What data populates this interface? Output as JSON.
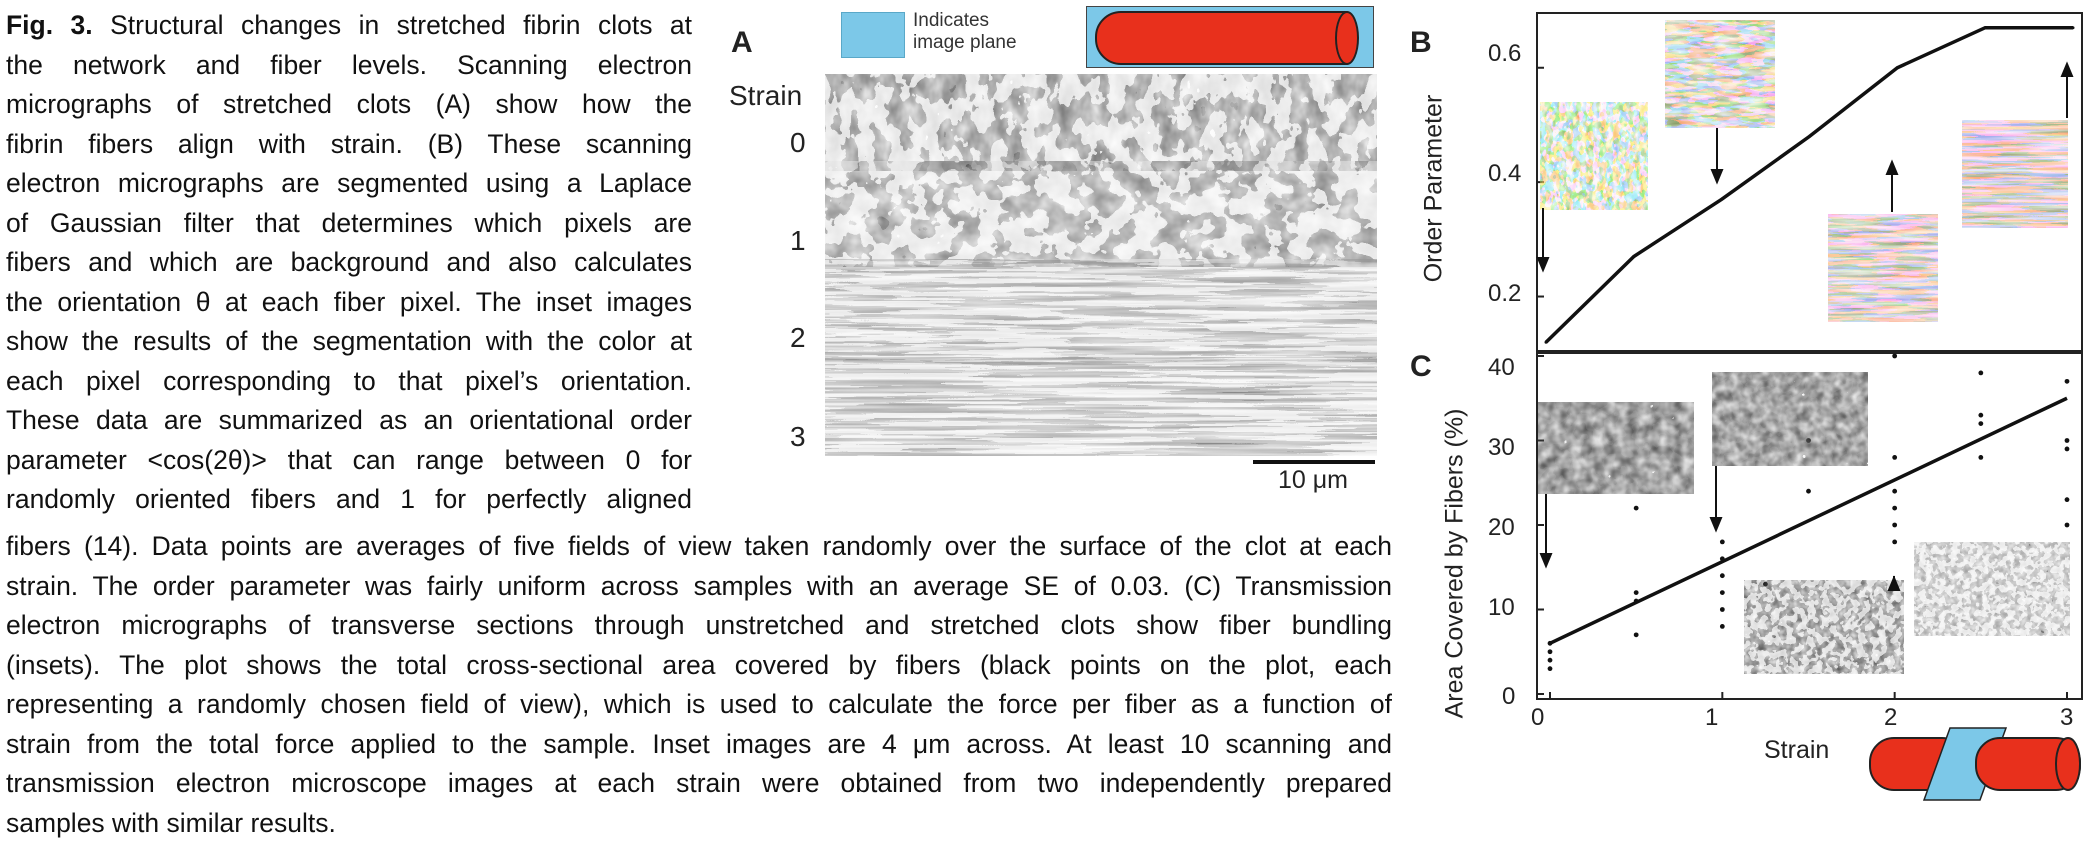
{
  "caption": {
    "fig_label": "Fig. 3.",
    "top_lines": [
      " Structural changes in stretched fibrin clots at",
      "the network and fiber levels. Scanning electron",
      "micrographs of stretched clots (A) show how the",
      "fibrin fibers align with strain. (B) These scanning",
      "electron micrographs are segmented using a Laplace",
      "of Gaussian filter that determines which pixels are",
      "fibers and which are background and also calculates",
      "the orientation θ at each fiber pixel. The inset images",
      "show the results of the segmentation with the color at",
      "each pixel corresponding to that pixel’s orientation.",
      "These data are summarized as an orientational order",
      "parameter <cos(2θ)> that can range between 0 for",
      "randomly oriented fibers and 1 for perfectly aligned"
    ],
    "bottom_lines": [
      "fibers (14). Data points are averages of five fields of view taken randomly over the surface of the clot at each",
      "strain. The order parameter was fairly uniform across samples with an average SE of 0.03. (C) Transmission",
      "electron micrographs of transverse sections through unstretched and stretched clots show fiber bundling",
      "(insets). The plot shows the total cross-sectional area covered by fibers (black points on the plot, each",
      "representing a randomly chosen field of view), which is used to calculate the force per fiber as a function of",
      "strain from the total force applied to the sample. Inset images are 4 μm across. At least 10 scanning and",
      "transmission electron microscope images at each strain were obtained from two independently prepared",
      "samples with similar results."
    ]
  },
  "panel_a": {
    "letter": "A",
    "legend_text_1": "Indicates",
    "legend_text_2": "image plane",
    "strain_title": "Strain",
    "strains": [
      "0",
      "1",
      "2",
      "3"
    ],
    "scale_bar_label": "10 μm",
    "legend_color": "#7cc8e8",
    "cylinder_color": "#e8301c"
  },
  "panel_b": {
    "letter": "B",
    "ylabel": "Order Parameter",
    "yticks": [
      "0.2",
      "0.4",
      "0.6"
    ]
  },
  "panel_c": {
    "letter": "C",
    "ylabel": "Area Covered by Fibers (%)",
    "xlabel": "Strain",
    "yticks": [
      "0",
      "10",
      "20",
      "30",
      "40"
    ],
    "xticks": [
      "0",
      "1",
      "2",
      "3"
    ]
  },
  "chart_data": [
    {
      "type": "line",
      "panel": "B",
      "title": "",
      "xlabel": "",
      "ylabel": "Order Parameter",
      "x": [
        0,
        0.5,
        1,
        1.5,
        2,
        2.5,
        3
      ],
      "y": [
        0.12,
        0.27,
        0.37,
        0.48,
        0.6,
        0.67,
        0.67
      ],
      "xlim": [
        0,
        3
      ],
      "ylim": [
        0.11,
        0.68
      ]
    },
    {
      "type": "scatter",
      "panel": "C",
      "title": "",
      "xlabel": "Strain",
      "ylabel": "Area Covered by Fibers (%)",
      "points_x": [
        0,
        0,
        0,
        0,
        0.5,
        0.5,
        0.5,
        0.5,
        1,
        1,
        1,
        1,
        1,
        1,
        1.25,
        1.5,
        1.5,
        2,
        2,
        2,
        2,
        2,
        2,
        2.5,
        2.5,
        2.5,
        2.5,
        3,
        3,
        3,
        3,
        3
      ],
      "points_y": [
        3,
        4,
        5,
        6,
        7,
        11,
        12,
        22,
        8,
        10,
        12,
        14,
        16,
        18,
        13,
        24,
        30,
        18,
        20,
        22,
        24,
        28,
        40,
        28,
        32,
        33,
        38,
        20,
        23,
        29,
        30,
        37
      ],
      "fit_line": {
        "x": [
          0,
          3
        ],
        "y": [
          6,
          35
        ]
      },
      "xlim": [
        0,
        3
      ],
      "ylim": [
        0,
        40
      ]
    }
  ]
}
